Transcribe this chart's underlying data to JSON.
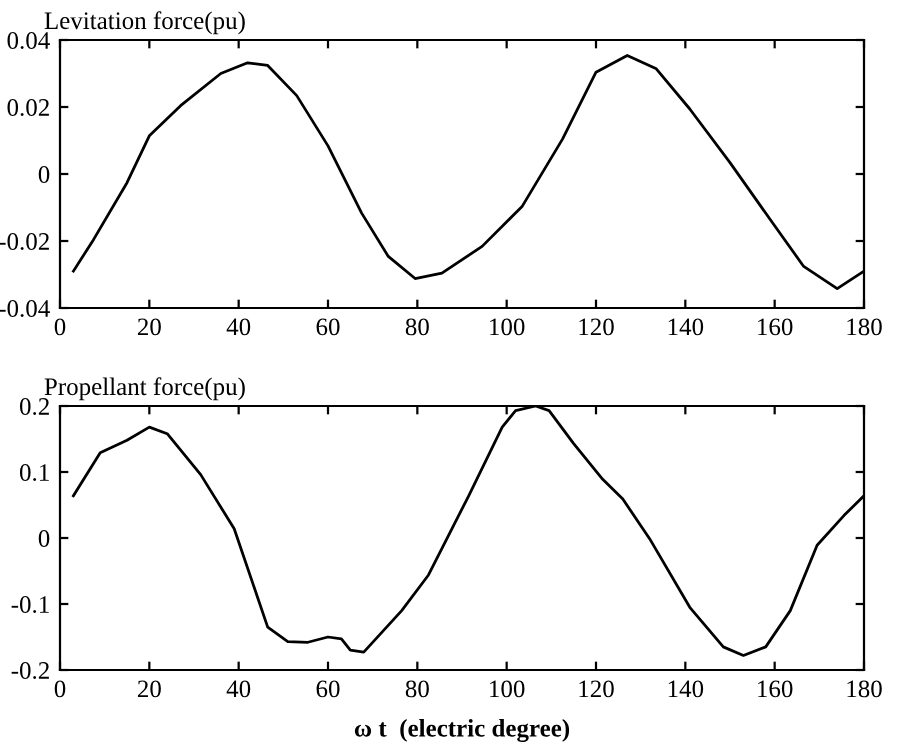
{
  "chart_data": [
    {
      "type": "line",
      "title": "Levitation force(pu)",
      "x": [
        3,
        7.5,
        15,
        20,
        27,
        36,
        42,
        46.5,
        53,
        60,
        67.5,
        73.5,
        79.5,
        85.5,
        94.5,
        103.5,
        112.5,
        120,
        127,
        133.5,
        141,
        150,
        159,
        166.5,
        174,
        180
      ],
      "series": [
        {
          "color": "#000000",
          "values": [
            -0.029,
            -0.0196,
            -0.0026,
            0.0114,
            0.0204,
            0.03,
            0.0332,
            0.0324,
            0.0234,
            0.0084,
            -0.0116,
            -0.0246,
            -0.0312,
            -0.0296,
            -0.0216,
            -0.0096,
            0.0104,
            0.0304,
            0.0354,
            0.0314,
            0.0194,
            0.0034,
            -0.0136,
            -0.0276,
            -0.0342,
            -0.029
          ]
        }
      ],
      "xlim": [
        0,
        180
      ],
      "xticks": [
        0,
        20,
        40,
        60,
        80,
        100,
        120,
        140,
        160,
        180
      ],
      "ylim": [
        -0.04,
        0.04
      ],
      "yticks": [
        -0.04,
        -0.02,
        0,
        0.02,
        0.04
      ],
      "grid": false,
      "legend": false
    },
    {
      "type": "line",
      "title": "Propellant force(pu)",
      "xlabel": "ω t  (electric degree)",
      "x": [
        3,
        9,
        15,
        20,
        24,
        31.5,
        39,
        46.5,
        51,
        55.5,
        60,
        63,
        65,
        68,
        76.5,
        82.5,
        91.5,
        99,
        102,
        106.5,
        109.5,
        115,
        121.5,
        126,
        132,
        141,
        148.5,
        153,
        158,
        163.5,
        169.5,
        175.5,
        180
      ],
      "series": [
        {
          "color": "#000000",
          "values": [
            0.064,
            0.129,
            0.148,
            0.168,
            0.158,
            0.096,
            0.014,
            -0.135,
            -0.157,
            -0.158,
            -0.15,
            -0.153,
            -0.17,
            -0.173,
            -0.11,
            -0.056,
            0.064,
            0.168,
            0.193,
            0.2,
            0.193,
            0.143,
            0.089,
            0.059,
            -0.001,
            -0.105,
            -0.165,
            -0.178,
            -0.165,
            -0.11,
            -0.011,
            0.034,
            0.064
          ]
        }
      ],
      "xlim": [
        0,
        180
      ],
      "xticks": [
        0,
        20,
        40,
        60,
        80,
        100,
        120,
        140,
        160,
        180
      ],
      "ylim": [
        -0.2,
        0.2
      ],
      "yticks": [
        -0.2,
        -0.1,
        0,
        0.1,
        0.2
      ],
      "grid": false,
      "legend": false
    }
  ]
}
